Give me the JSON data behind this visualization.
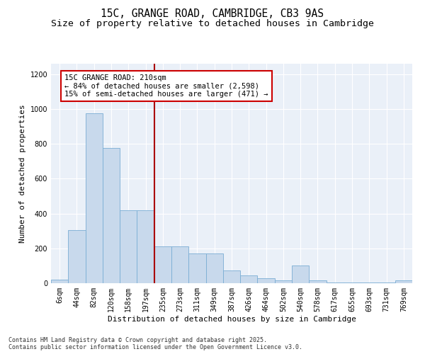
{
  "title_line1": "15C, GRANGE ROAD, CAMBRIDGE, CB3 9AS",
  "title_line2": "Size of property relative to detached houses in Cambridge",
  "xlabel": "Distribution of detached houses by size in Cambridge",
  "ylabel": "Number of detached properties",
  "categories": [
    "6sqm",
    "44sqm",
    "82sqm",
    "120sqm",
    "158sqm",
    "197sqm",
    "235sqm",
    "273sqm",
    "311sqm",
    "349sqm",
    "387sqm",
    "426sqm",
    "464sqm",
    "502sqm",
    "540sqm",
    "578sqm",
    "617sqm",
    "655sqm",
    "693sqm",
    "731sqm",
    "769sqm"
  ],
  "values": [
    20,
    305,
    975,
    775,
    420,
    420,
    210,
    210,
    170,
    170,
    75,
    45,
    30,
    18,
    100,
    15,
    5,
    5,
    5,
    5,
    15
  ],
  "bar_color": "#c8d9ec",
  "bar_edge_color": "#7aadd4",
  "vline_color": "#aa0000",
  "annotation_text": "15C GRANGE ROAD: 210sqm\n← 84% of detached houses are smaller (2,598)\n15% of semi-detached houses are larger (471) →",
  "box_edge_color": "#cc0000",
  "ylim": [
    0,
    1260
  ],
  "yticks": [
    0,
    200,
    400,
    600,
    800,
    1000,
    1200
  ],
  "background_color": "#eaf0f8",
  "footer_line1": "Contains HM Land Registry data © Crown copyright and database right 2025.",
  "footer_line2": "Contains public sector information licensed under the Open Government Licence v3.0.",
  "title_fontsize": 10.5,
  "subtitle_fontsize": 9.5,
  "axis_label_fontsize": 8,
  "tick_fontsize": 7,
  "annotation_fontsize": 7.5,
  "footer_fontsize": 6
}
